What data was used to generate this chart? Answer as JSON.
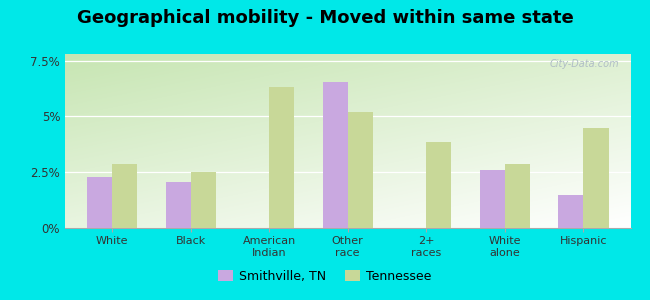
{
  "title": "Geographical mobility - Moved within same state",
  "categories": [
    "White",
    "Black",
    "American\nIndian",
    "Other\nrace",
    "2+\nraces",
    "White\nalone",
    "Hispanic"
  ],
  "smithville_values": [
    2.3,
    2.05,
    0.0,
    6.55,
    0.0,
    2.6,
    1.5
  ],
  "tennessee_values": [
    2.85,
    2.5,
    6.3,
    5.2,
    3.85,
    2.85,
    4.5
  ],
  "smithville_color": "#c9a8e0",
  "tennessee_color": "#c8d898",
  "outer_background": "#00e8e8",
  "ylim": [
    0,
    7.8
  ],
  "yticks": [
    0,
    2.5,
    5.0,
    7.5
  ],
  "ytick_labels": [
    "0%",
    "2.5%",
    "5%",
    "7.5%"
  ],
  "legend_smithville": "Smithville, TN",
  "legend_tennessee": "Tennessee",
  "bar_width": 0.32,
  "title_fontsize": 13
}
